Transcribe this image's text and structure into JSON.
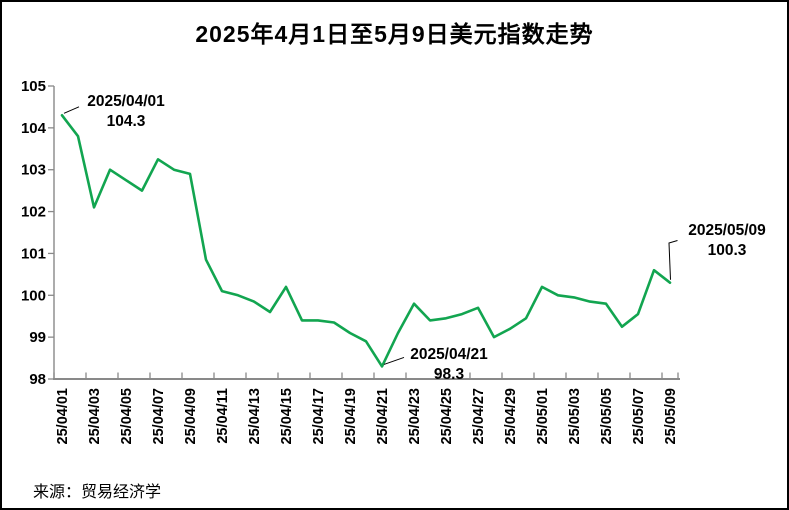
{
  "title": "2025年4月1日至5月9日美元指数走势",
  "source": "来源：贸易经济学",
  "colors": {
    "line": "#12a550",
    "axis": "#898989",
    "text": "#000000",
    "leader": "#000000",
    "background": "#ffffff",
    "frame_border": "#000000"
  },
  "y_axis": {
    "ticks": [
      "105",
      "104",
      "103",
      "102",
      "101",
      "100",
      "99",
      "98"
    ]
  },
  "x_axis": {
    "labels": [
      "25/04/01",
      "25/04/03",
      "25/04/05",
      "25/04/07",
      "25/04/09",
      "25/04/11",
      "25/04/13",
      "25/04/15",
      "25/04/17",
      "25/04/19",
      "25/04/21",
      "25/04/23",
      "25/04/25",
      "25/04/27",
      "25/04/29",
      "25/05/01",
      "25/05/03",
      "25/05/05",
      "25/05/07",
      "25/05/09"
    ]
  },
  "annotations": [
    {
      "date": "2025/04/01",
      "value": "104.3",
      "point_index": 0
    },
    {
      "date": "2025/04/21",
      "value": "98.3",
      "point_index": 20
    },
    {
      "date": "2025/05/09",
      "value": "100.3",
      "point_index": 38
    }
  ],
  "chart_data": {
    "type": "line",
    "title": "2025年4月1日至5月9日美元指数走势",
    "xlabel": "",
    "ylabel": "",
    "ylim": [
      98,
      105
    ],
    "grid": false,
    "legend": "none",
    "line_color": "#12a550",
    "x": [
      "25/04/01",
      "25/04/02",
      "25/04/03",
      "25/04/04",
      "25/04/05",
      "25/04/06",
      "25/04/07",
      "25/04/08",
      "25/04/09",
      "25/04/10",
      "25/04/11",
      "25/04/12",
      "25/04/13",
      "25/04/14",
      "25/04/15",
      "25/04/16",
      "25/04/17",
      "25/04/18",
      "25/04/19",
      "25/04/20",
      "25/04/21",
      "25/04/22",
      "25/04/23",
      "25/04/24",
      "25/04/25",
      "25/04/26",
      "25/04/27",
      "25/04/28",
      "25/04/29",
      "25/04/30",
      "25/05/01",
      "25/05/02",
      "25/05/03",
      "25/05/04",
      "25/05/05",
      "25/05/06",
      "25/05/07",
      "25/05/08",
      "25/05/09"
    ],
    "values": [
      104.3,
      103.8,
      102.1,
      103.0,
      102.75,
      102.5,
      103.25,
      103.0,
      102.9,
      100.85,
      100.1,
      100.0,
      99.85,
      99.6,
      100.2,
      99.4,
      99.4,
      99.35,
      99.1,
      98.9,
      98.3,
      99.1,
      99.8,
      99.4,
      99.45,
      99.55,
      99.7,
      99.0,
      99.2,
      99.45,
      100.2,
      100.0,
      99.95,
      99.85,
      99.8,
      99.25,
      99.55,
      100.6,
      100.3
    ],
    "annotated_points": [
      {
        "x": "25/04/01",
        "y": 104.3
      },
      {
        "x": "25/04/21",
        "y": 98.3
      },
      {
        "x": "25/05/09",
        "y": 100.3
      }
    ]
  }
}
